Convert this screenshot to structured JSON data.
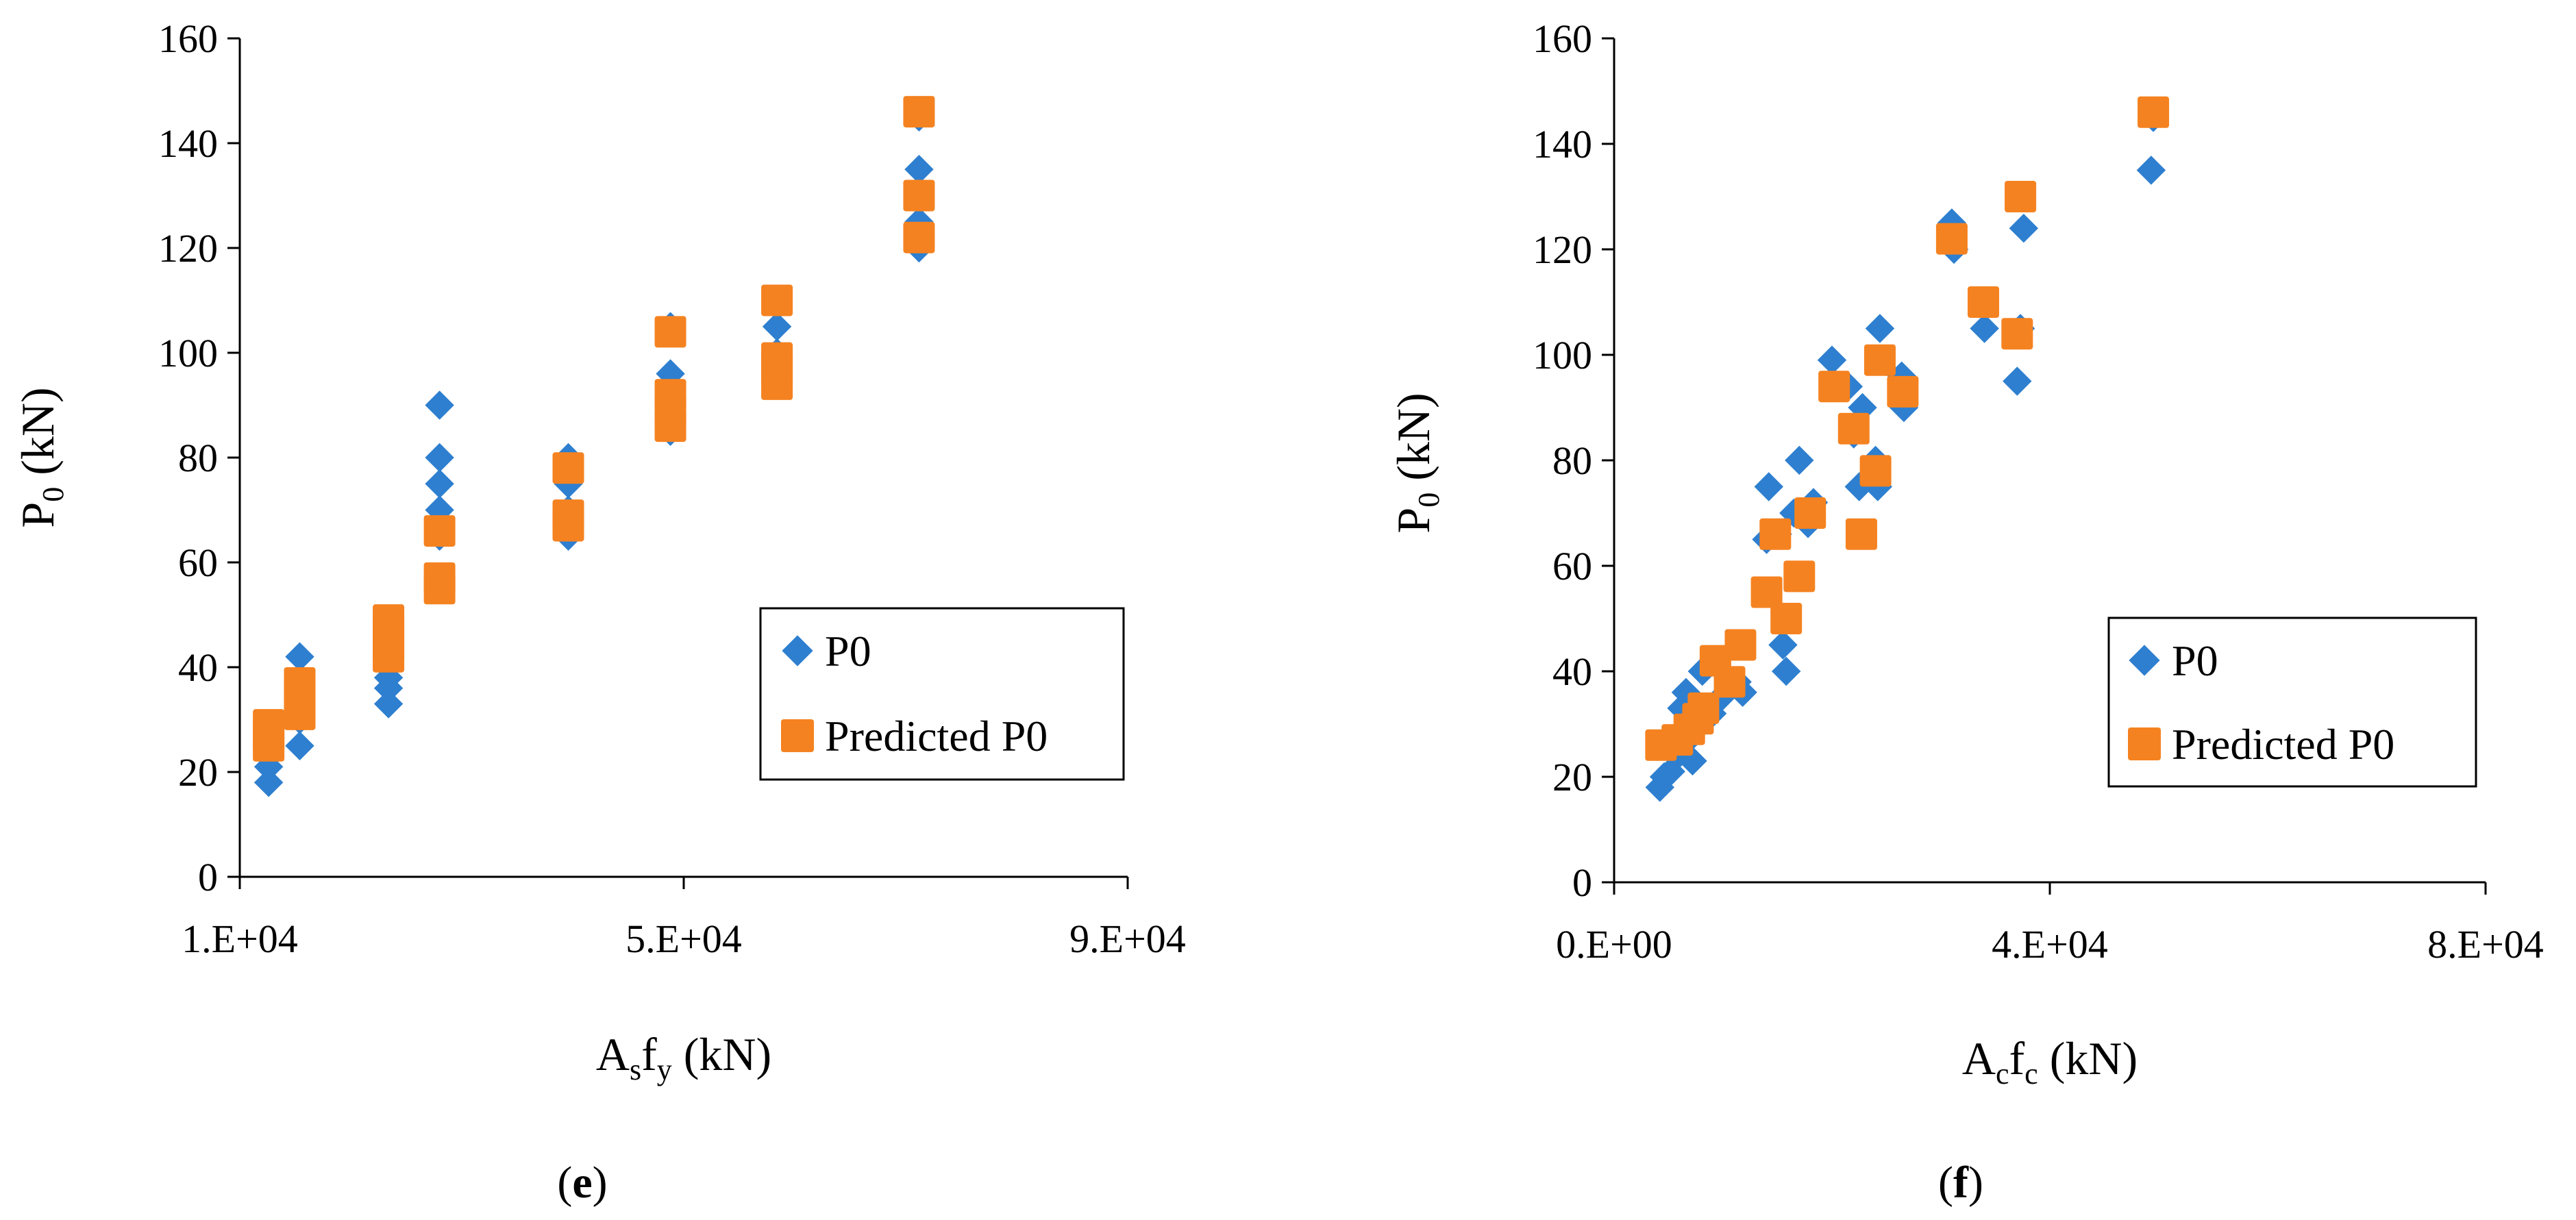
{
  "colors": {
    "p0": "#2E7FCF",
    "predicted": "#F58220",
    "axis": "#000000"
  },
  "legend": {
    "series1": "P0",
    "series2": "Predicted P0"
  },
  "chart_data": [
    {
      "type": "scatter",
      "panel_label": {
        "open": "(",
        "letter": "e",
        "close": ")"
      },
      "xlabel": {
        "main1": "A",
        "sub1": "s",
        "main2": "f",
        "sub2": "y",
        "unit": " (kN)"
      },
      "ylabel": {
        "main": "P",
        "sub": "0",
        "unit": " (kN)"
      },
      "xlim": [
        10000,
        90000
      ],
      "ylim": [
        0,
        160
      ],
      "xticks": [
        10000,
        50000,
        90000
      ],
      "xtick_labels": [
        "1.E+04",
        "5.E+04",
        "9.E+04"
      ],
      "yticks": [
        0,
        20,
        40,
        60,
        80,
        100,
        120,
        140,
        160
      ],
      "ytick_labels": [
        "0",
        "20",
        "40",
        "60",
        "80",
        "100",
        "120",
        "140",
        "160"
      ],
      "legend_position": "bottom-right",
      "series": [
        {
          "name": "P0",
          "marker": "diamond",
          "points": [
            [
              12600,
              18
            ],
            [
              12600,
              21
            ],
            [
              12600,
              24
            ],
            [
              12600,
              27
            ],
            [
              15400,
              25
            ],
            [
              15400,
              30
            ],
            [
              15400,
              34
            ],
            [
              15400,
              38
            ],
            [
              15400,
              42
            ],
            [
              23400,
              33
            ],
            [
              23400,
              36
            ],
            [
              23400,
              38
            ],
            [
              23400,
              42
            ],
            [
              23400,
              45
            ],
            [
              28000,
              65
            ],
            [
              28000,
              70
            ],
            [
              28000,
              75
            ],
            [
              28000,
              80
            ],
            [
              28000,
              90
            ],
            [
              39600,
              65
            ],
            [
              39600,
              70
            ],
            [
              39600,
              75
            ],
            [
              39600,
              80
            ],
            [
              48800,
              85
            ],
            [
              48800,
              88
            ],
            [
              48800,
              92
            ],
            [
              48800,
              96
            ],
            [
              48800,
              105
            ],
            [
              58400,
              95
            ],
            [
              58400,
              100
            ],
            [
              58400,
              105
            ],
            [
              71200,
              120
            ],
            [
              71200,
              125
            ],
            [
              71200,
              130
            ],
            [
              71200,
              135
            ],
            [
              71200,
              145
            ]
          ]
        },
        {
          "name": "Predicted P0",
          "marker": "square",
          "points": [
            [
              12600,
              25
            ],
            [
              12600,
              27
            ],
            [
              12600,
              29
            ],
            [
              15400,
              31
            ],
            [
              15400,
              33
            ],
            [
              15400,
              35
            ],
            [
              15400,
              37
            ],
            [
              23400,
              42
            ],
            [
              23400,
              44
            ],
            [
              23400,
              47
            ],
            [
              23400,
              49
            ],
            [
              28000,
              55
            ],
            [
              28000,
              57
            ],
            [
              28000,
              66
            ],
            [
              39600,
              67
            ],
            [
              39600,
              69
            ],
            [
              39600,
              78
            ],
            [
              48800,
              86
            ],
            [
              48800,
              89
            ],
            [
              48800,
              92
            ],
            [
              48800,
              104
            ],
            [
              58400,
              94
            ],
            [
              58400,
              97
            ],
            [
              58400,
              99
            ],
            [
              58400,
              110
            ],
            [
              71200,
              122
            ],
            [
              71200,
              130
            ],
            [
              71200,
              146
            ]
          ]
        }
      ]
    },
    {
      "type": "scatter",
      "panel_label": {
        "open": "(",
        "letter": "f",
        "close": ")"
      },
      "xlabel": {
        "main1": "A",
        "sub1": "c",
        "main2": "f",
        "sub2": "c",
        "unit": " (kN)"
      },
      "ylabel": {
        "main": "P",
        "sub": "0",
        "unit": " (kN)"
      },
      "xlim": [
        0,
        80000
      ],
      "ylim": [
        0,
        160
      ],
      "xticks": [
        0,
        40000,
        80000
      ],
      "xtick_labels": [
        "0.E+00",
        "4.E+04",
        "8.E+04"
      ],
      "yticks": [
        0,
        20,
        40,
        60,
        80,
        100,
        120,
        140,
        160
      ],
      "ytick_labels": [
        "0",
        "20",
        "40",
        "60",
        "80",
        "100",
        "120",
        "140",
        "160"
      ],
      "legend_position": "bottom-right",
      "series": [
        {
          "name": "P0",
          "marker": "diamond",
          "points": [
            [
              4200,
              18
            ],
            [
              4600,
              20
            ],
            [
              5200,
              21
            ],
            [
              5800,
              24
            ],
            [
              6300,
              26
            ],
            [
              6200,
              33
            ],
            [
              6600,
              36
            ],
            [
              7200,
              23
            ],
            [
              7600,
              30
            ],
            [
              8100,
              40
            ],
            [
              9000,
              32
            ],
            [
              9800,
              35
            ],
            [
              10500,
              37
            ],
            [
              11300,
              38
            ],
            [
              11800,
              36
            ],
            [
              14000,
              65
            ],
            [
              14200,
              75
            ],
            [
              15000,
              66
            ],
            [
              15500,
              45
            ],
            [
              15800,
              40
            ],
            [
              16500,
              70
            ],
            [
              17000,
              80
            ],
            [
              17800,
              68
            ],
            [
              18300,
              72
            ],
            [
              20000,
              99
            ],
            [
              21500,
              94
            ],
            [
              22000,
              85
            ],
            [
              22500,
              75
            ],
            [
              22800,
              90
            ],
            [
              24000,
              80
            ],
            [
              24200,
              75
            ],
            [
              24400,
              105
            ],
            [
              26400,
              96
            ],
            [
              26600,
              90
            ],
            [
              31000,
              125
            ],
            [
              31200,
              120
            ],
            [
              34000,
              105
            ],
            [
              37000,
              95
            ],
            [
              37300,
              105
            ],
            [
              37600,
              124
            ],
            [
              49300,
              135
            ],
            [
              49500,
              145
            ]
          ]
        },
        {
          "name": "Predicted P0",
          "marker": "square",
          "points": [
            [
              4300,
              26
            ],
            [
              5800,
              27
            ],
            [
              6900,
              29
            ],
            [
              7700,
              31
            ],
            [
              8200,
              33
            ],
            [
              9300,
              42
            ],
            [
              10600,
              38
            ],
            [
              11600,
              45
            ],
            [
              14000,
              55
            ],
            [
              14800,
              66
            ],
            [
              15800,
              50
            ],
            [
              17000,
              58
            ],
            [
              18000,
              70
            ],
            [
              20200,
              94
            ],
            [
              22000,
              86
            ],
            [
              22700,
              66
            ],
            [
              24000,
              78
            ],
            [
              24400,
              99
            ],
            [
              26500,
              93
            ],
            [
              31000,
              122
            ],
            [
              33900,
              110
            ],
            [
              37000,
              104
            ],
            [
              37300,
              130
            ],
            [
              49500,
              146
            ]
          ]
        }
      ]
    }
  ]
}
